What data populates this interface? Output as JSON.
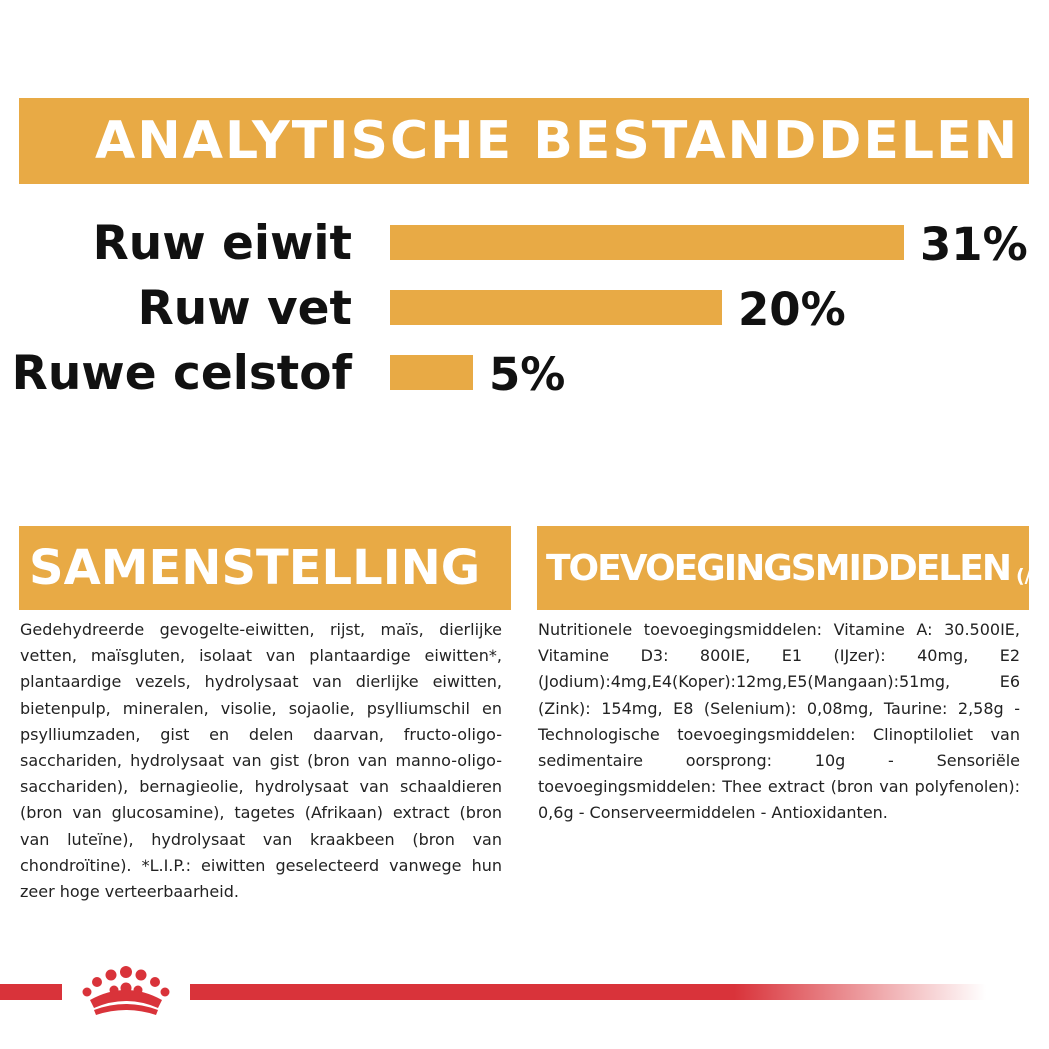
{
  "header": {
    "title": "ANALYTISCHE BESTANDDELEN"
  },
  "chart_data": {
    "type": "bar",
    "orientation": "horizontal",
    "title": "ANALYTISCHE BESTANDDELEN",
    "categories": [
      "Ruw eiwit",
      "Ruw vet",
      "Ruwe celstof"
    ],
    "values": [
      31,
      20,
      5
    ],
    "value_labels": [
      "31%",
      "20%",
      "5%"
    ],
    "xlim": [
      0,
      31
    ],
    "grid": false,
    "legend": "none",
    "bar_color": "#e8aa45"
  },
  "composition": {
    "title": "SAMENSTELLING",
    "text": "Gedehydreerde gevogelte-eiwitten, rijst, maïs, dierlijke vetten, maïsgluten, isolaat van plantaardige eiwitten*, plantaardige vezels, hydrolysaat van dierlijke eiwitten, bietenpulp, mineralen, visolie, sojaolie, psylliumschil en psylliumzaden, gist en delen daarvan, fructo-oligo-sacchariden, hydrolysaat van gist (bron van manno-oligo-sacchariden), bernagieolie, hydrolysaat van schaaldieren (bron van glucosamine), tagetes (Afrikaan) extract (bron van luteïne), hydrolysaat van kraakbeen (bron van chondroïtine). *L.I.P.: eiwitten geselecteerd vanwege hun zeer hoge verteerbaarheid."
  },
  "additives": {
    "title": "TOEVOEGINGSMIDDELEN",
    "unit": "(/kg)",
    "text": "Nutritionele toevoegingsmiddelen: Vitamine A: 30.500IE, Vitamine D3: 800IE, E1 (IJzer): 40mg, E2 (Jodium):4mg,E4(Koper):12mg,E5(Mangaan):51mg, E6 (Zink): 154mg, E8 (Selenium): 0,08mg, Taurine: 2,58g - Technologische toevoegingsmiddelen: Clinoptiloliet van sedimentaire oorsprong: 10g - Sensoriële toevoegingsmiddelen: Thee extract (bron van polyfenolen): 0,6g - Conserveermiddelen - Antioxidanten."
  },
  "footer": {
    "logo_icon": "crown-icon",
    "line_color": "#d9333a"
  }
}
